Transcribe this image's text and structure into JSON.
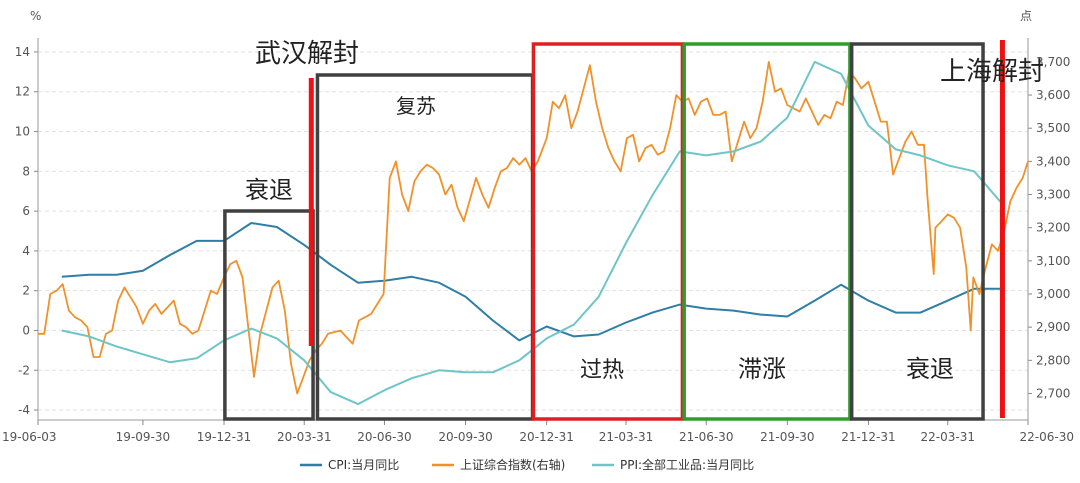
{
  "chart_data": {
    "type": "line",
    "left_unit": "%",
    "right_unit": "点",
    "left_ylim": [
      -4.5,
      14.5
    ],
    "right_ylim": [
      2620,
      3760
    ],
    "left_ticks": [
      "14",
      "12",
      "10",
      "8",
      "6",
      "4",
      "2",
      "0",
      "-2",
      "-4"
    ],
    "right_ticks": [
      "3,700",
      "3,600",
      "3,500",
      "3,400",
      "3,300",
      "3,200",
      "3,100",
      "3,000",
      "2,900",
      "2,800",
      "2,700"
    ],
    "x_ticks": [
      "19-06-03",
      "19-09-30",
      "19-12-31",
      "20-03-31",
      "20-06-30",
      "20-09-30",
      "20-12-31",
      "21-03-31",
      "21-06-30",
      "21-09-30",
      "21-12-31",
      "22-03-31",
      "22-06-30"
    ],
    "grid": true,
    "legend_position": "bottom",
    "series": [
      {
        "name": "CPI:当月同比",
        "axis": "left",
        "color": "#2e7ea6",
        "points": [
          [
            "2019-06-30",
            2.7
          ],
          [
            "2019-07-31",
            2.8
          ],
          [
            "2019-08-31",
            2.8
          ],
          [
            "2019-09-30",
            3.0
          ],
          [
            "2019-10-31",
            3.8
          ],
          [
            "2019-11-30",
            4.5
          ],
          [
            "2019-12-31",
            4.5
          ],
          [
            "2020-01-31",
            5.4
          ],
          [
            "2020-02-29",
            5.2
          ],
          [
            "2020-03-31",
            4.3
          ],
          [
            "2020-04-30",
            3.3
          ],
          [
            "2020-05-31",
            2.4
          ],
          [
            "2020-06-30",
            2.5
          ],
          [
            "2020-07-31",
            2.7
          ],
          [
            "2020-08-31",
            2.4
          ],
          [
            "2020-09-30",
            1.7
          ],
          [
            "2020-10-31",
            0.5
          ],
          [
            "2020-11-30",
            -0.5
          ],
          [
            "2020-12-31",
            0.2
          ],
          [
            "2021-01-31",
            -0.3
          ],
          [
            "2021-02-28",
            -0.2
          ],
          [
            "2021-03-31",
            0.4
          ],
          [
            "2021-04-30",
            0.9
          ],
          [
            "2021-05-31",
            1.3
          ],
          [
            "2021-06-30",
            1.1
          ],
          [
            "2021-07-31",
            1.0
          ],
          [
            "2021-08-31",
            0.8
          ],
          [
            "2021-09-30",
            0.7
          ],
          [
            "2021-10-31",
            1.5
          ],
          [
            "2021-11-30",
            2.3
          ],
          [
            "2021-12-31",
            1.5
          ],
          [
            "2022-01-31",
            0.9
          ],
          [
            "2022-02-28",
            0.9
          ],
          [
            "2022-03-31",
            1.5
          ],
          [
            "2022-04-30",
            2.1
          ],
          [
            "2022-05-31",
            2.1
          ]
        ]
      },
      {
        "name": "上证综合指数(右轴)",
        "axis": "right",
        "color": "#f0912a",
        "points": [
          [
            "2019-06-03",
            2880
          ],
          [
            "2019-06-10",
            2880
          ],
          [
            "2019-06-17",
            3000
          ],
          [
            "2019-06-24",
            3010
          ],
          [
            "2019-07-01",
            3030
          ],
          [
            "2019-07-08",
            2950
          ],
          [
            "2019-07-15",
            2930
          ],
          [
            "2019-07-22",
            2920
          ],
          [
            "2019-07-29",
            2900
          ],
          [
            "2019-08-05",
            2810
          ],
          [
            "2019-08-12",
            2810
          ],
          [
            "2019-08-19",
            2880
          ],
          [
            "2019-08-26",
            2890
          ],
          [
            "2019-09-02",
            2980
          ],
          [
            "2019-09-09",
            3020
          ],
          [
            "2019-09-16",
            2990
          ],
          [
            "2019-09-23",
            2960
          ],
          [
            "2019-09-30",
            2910
          ],
          [
            "2019-10-07",
            2950
          ],
          [
            "2019-10-14",
            2970
          ],
          [
            "2019-10-21",
            2940
          ],
          [
            "2019-10-28",
            2960
          ],
          [
            "2019-11-04",
            2980
          ],
          [
            "2019-11-11",
            2910
          ],
          [
            "2019-11-18",
            2900
          ],
          [
            "2019-11-25",
            2880
          ],
          [
            "2019-12-02",
            2890
          ],
          [
            "2019-12-09",
            2950
          ],
          [
            "2019-12-16",
            3010
          ],
          [
            "2019-12-23",
            3000
          ],
          [
            "2019-12-31",
            3050
          ],
          [
            "2020-01-07",
            3090
          ],
          [
            "2020-01-14",
            3100
          ],
          [
            "2020-01-21",
            3050
          ],
          [
            "2020-02-03",
            2750
          ],
          [
            "2020-02-10",
            2880
          ],
          [
            "2020-02-17",
            2950
          ],
          [
            "2020-02-24",
            3020
          ],
          [
            "2020-03-02",
            3040
          ],
          [
            "2020-03-09",
            2950
          ],
          [
            "2020-03-16",
            2790
          ],
          [
            "2020-03-23",
            2700
          ],
          [
            "2020-03-30",
            2750
          ],
          [
            "2020-04-06",
            2800
          ],
          [
            "2020-04-13",
            2830
          ],
          [
            "2020-04-20",
            2850
          ],
          [
            "2020-04-27",
            2880
          ],
          [
            "2020-05-11",
            2890
          ],
          [
            "2020-05-18",
            2870
          ],
          [
            "2020-05-25",
            2850
          ],
          [
            "2020-06-01",
            2920
          ],
          [
            "2020-06-08",
            2930
          ],
          [
            "2020-06-15",
            2940
          ],
          [
            "2020-06-22",
            2970
          ],
          [
            "2020-06-29",
            3000
          ],
          [
            "2020-07-06",
            3350
          ],
          [
            "2020-07-13",
            3400
          ],
          [
            "2020-07-20",
            3300
          ],
          [
            "2020-07-27",
            3250
          ],
          [
            "2020-08-03",
            3340
          ],
          [
            "2020-08-10",
            3370
          ],
          [
            "2020-08-17",
            3390
          ],
          [
            "2020-08-24",
            3380
          ],
          [
            "2020-08-31",
            3360
          ],
          [
            "2020-09-07",
            3300
          ],
          [
            "2020-09-14",
            3330
          ],
          [
            "2020-09-21",
            3260
          ],
          [
            "2020-09-28",
            3220
          ],
          [
            "2020-10-12",
            3350
          ],
          [
            "2020-10-19",
            3300
          ],
          [
            "2020-10-26",
            3260
          ],
          [
            "2020-11-02",
            3320
          ],
          [
            "2020-11-09",
            3370
          ],
          [
            "2020-11-16",
            3380
          ],
          [
            "2020-11-23",
            3410
          ],
          [
            "2020-11-30",
            3390
          ],
          [
            "2020-12-07",
            3410
          ],
          [
            "2020-12-14",
            3370
          ],
          [
            "2020-12-21",
            3400
          ],
          [
            "2020-12-31",
            3470
          ],
          [
            "2021-01-07",
            3580
          ],
          [
            "2021-01-14",
            3560
          ],
          [
            "2021-01-21",
            3600
          ],
          [
            "2021-01-28",
            3500
          ],
          [
            "2021-02-04",
            3550
          ],
          [
            "2021-02-18",
            3690
          ],
          [
            "2021-02-25",
            3580
          ],
          [
            "2021-03-04",
            3500
          ],
          [
            "2021-03-11",
            3440
          ],
          [
            "2021-03-18",
            3400
          ],
          [
            "2021-03-25",
            3370
          ],
          [
            "2021-04-01",
            3470
          ],
          [
            "2021-04-08",
            3480
          ],
          [
            "2021-04-15",
            3400
          ],
          [
            "2021-04-22",
            3440
          ],
          [
            "2021-04-29",
            3450
          ],
          [
            "2021-05-06",
            3420
          ],
          [
            "2021-05-13",
            3430
          ],
          [
            "2021-05-20",
            3500
          ],
          [
            "2021-05-27",
            3600
          ],
          [
            "2021-06-03",
            3580
          ],
          [
            "2021-06-10",
            3590
          ],
          [
            "2021-06-17",
            3540
          ],
          [
            "2021-06-24",
            3580
          ],
          [
            "2021-07-01",
            3590
          ],
          [
            "2021-07-08",
            3540
          ],
          [
            "2021-07-15",
            3540
          ],
          [
            "2021-07-22",
            3550
          ],
          [
            "2021-07-29",
            3400
          ],
          [
            "2021-08-05",
            3460
          ],
          [
            "2021-08-12",
            3520
          ],
          [
            "2021-08-19",
            3470
          ],
          [
            "2021-08-26",
            3500
          ],
          [
            "2021-09-02",
            3580
          ],
          [
            "2021-09-09",
            3700
          ],
          [
            "2021-09-16",
            3610
          ],
          [
            "2021-09-23",
            3620
          ],
          [
            "2021-09-30",
            3570
          ],
          [
            "2021-10-14",
            3550
          ],
          [
            "2021-10-21",
            3590
          ],
          [
            "2021-10-28",
            3550
          ],
          [
            "2021-11-04",
            3510
          ],
          [
            "2021-11-11",
            3540
          ],
          [
            "2021-11-18",
            3530
          ],
          [
            "2021-11-25",
            3580
          ],
          [
            "2021-12-02",
            3570
          ],
          [
            "2021-12-09",
            3670
          ],
          [
            "2021-12-16",
            3650
          ],
          [
            "2021-12-23",
            3620
          ],
          [
            "2021-12-31",
            3640
          ],
          [
            "2022-01-07",
            3580
          ],
          [
            "2022-01-14",
            3520
          ],
          [
            "2022-01-21",
            3520
          ],
          [
            "2022-01-28",
            3360
          ],
          [
            "2022-02-11",
            3460
          ],
          [
            "2022-02-18",
            3490
          ],
          [
            "2022-02-25",
            3450
          ],
          [
            "2022-03-04",
            3450
          ],
          [
            "2022-03-08",
            3290
          ],
          [
            "2022-03-15",
            3060
          ],
          [
            "2022-03-17",
            3200
          ],
          [
            "2022-03-24",
            3220
          ],
          [
            "2022-03-31",
            3240
          ],
          [
            "2022-04-07",
            3230
          ],
          [
            "2022-04-14",
            3200
          ],
          [
            "2022-04-21",
            3080
          ],
          [
            "2022-04-26",
            2890
          ],
          [
            "2022-04-29",
            3050
          ],
          [
            "2022-05-06",
            3000
          ],
          [
            "2022-05-13",
            3080
          ],
          [
            "2022-05-20",
            3150
          ],
          [
            "2022-05-27",
            3130
          ],
          [
            "2022-06-03",
            3190
          ],
          [
            "2022-06-10",
            3280
          ],
          [
            "2022-06-17",
            3320
          ],
          [
            "2022-06-24",
            3350
          ],
          [
            "2022-06-30",
            3400
          ]
        ]
      },
      {
        "name": "PPI:全部工业品:当月同比",
        "axis": "left",
        "color": "#6ec5c8",
        "points": [
          [
            "2019-06-30",
            0.0
          ],
          [
            "2019-07-31",
            -0.3
          ],
          [
            "2019-08-31",
            -0.8
          ],
          [
            "2019-09-30",
            -1.2
          ],
          [
            "2019-10-31",
            -1.6
          ],
          [
            "2019-11-30",
            -1.4
          ],
          [
            "2019-12-31",
            -0.5
          ],
          [
            "2020-01-31",
            0.1
          ],
          [
            "2020-02-29",
            -0.4
          ],
          [
            "2020-03-31",
            -1.5
          ],
          [
            "2020-04-30",
            -3.1
          ],
          [
            "2020-05-31",
            -3.7
          ],
          [
            "2020-06-30",
            -3.0
          ],
          [
            "2020-07-31",
            -2.4
          ],
          [
            "2020-08-31",
            -2.0
          ],
          [
            "2020-09-30",
            -2.1
          ],
          [
            "2020-10-31",
            -2.1
          ],
          [
            "2020-11-30",
            -1.5
          ],
          [
            "2020-12-31",
            -0.4
          ],
          [
            "2021-01-31",
            0.3
          ],
          [
            "2021-02-28",
            1.7
          ],
          [
            "2021-03-31",
            4.4
          ],
          [
            "2021-04-30",
            6.8
          ],
          [
            "2021-05-31",
            9.0
          ],
          [
            "2021-06-30",
            8.8
          ],
          [
            "2021-07-31",
            9.0
          ],
          [
            "2021-08-31",
            9.5
          ],
          [
            "2021-09-30",
            10.7
          ],
          [
            "2021-10-31",
            13.5
          ],
          [
            "2021-11-30",
            12.9
          ],
          [
            "2021-12-31",
            10.3
          ],
          [
            "2022-01-31",
            9.1
          ],
          [
            "2022-02-28",
            8.8
          ],
          [
            "2022-03-31",
            8.3
          ],
          [
            "2022-04-30",
            8.0
          ],
          [
            "2022-05-31",
            6.4
          ]
        ]
      }
    ],
    "annotations": {
      "wuhan": "武汉解封",
      "shanghai": "上海解封",
      "regimes": [
        {
          "label": "衰退",
          "color": "#404040",
          "range": [
            "2020-01-01",
            "2020-04-10"
          ]
        },
        {
          "label": "复苏",
          "color": "#404040",
          "range": [
            "2020-04-15",
            "2020-12-15"
          ]
        },
        {
          "label": "过热",
          "color": "#e02020",
          "range": [
            "2020-12-16",
            "2021-06-03"
          ]
        },
        {
          "label": "滞涨",
          "color": "#2aa02a",
          "range": [
            "2021-06-05",
            "2021-12-10"
          ]
        },
        {
          "label": "衰退",
          "color": "#404040",
          "range": [
            "2021-12-12",
            "2022-05-10"
          ]
        }
      ]
    }
  }
}
